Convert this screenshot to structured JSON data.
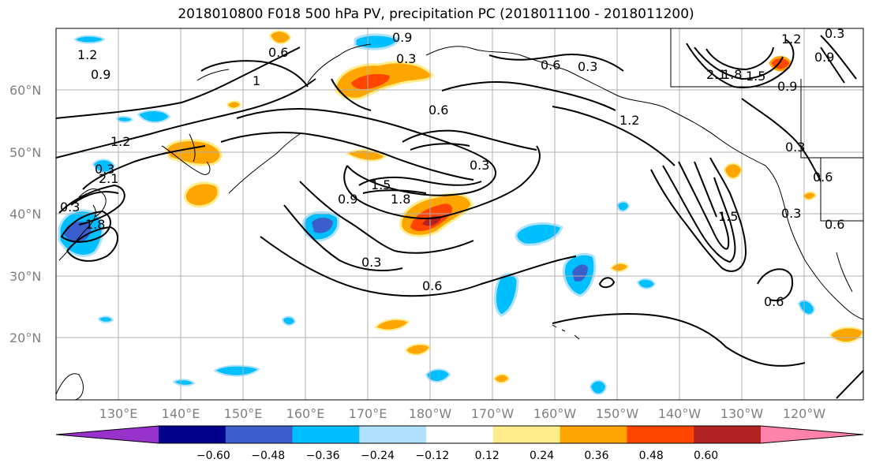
{
  "title": "2018010800 F018 500 hPa PV, precipitation PC (2018011100 - 2018011200)",
  "lat_labels": [
    "60°N",
    "50°N",
    "40°N",
    "30°N",
    "20°N"
  ],
  "lon_labels": [
    "130°E",
    "140°E",
    "150°E",
    "160°E",
    "170°E",
    "180°W",
    "170°W",
    "160°W",
    "150°W",
    "140°W",
    "130°W",
    "120°W"
  ],
  "colorbar": {
    "tick_labels": [
      "−0.60",
      "−0.48",
      "−0.36",
      "−0.24",
      "−0.12",
      "0.12",
      "0.24",
      "0.36",
      "0.48",
      "0.60"
    ],
    "colors": [
      "#9932cc",
      "#00008b",
      "#3a5fcd",
      "#00bfff",
      "#b0e2ff",
      "#ffffff",
      "#ffec8b",
      "#ffa500",
      "#ff4500",
      "#b22222",
      "#ff82ab"
    ]
  },
  "contour_labels": [
    "0.9",
    "0.6",
    "0.3",
    "1.2",
    "0.9",
    "0.3",
    "0.6",
    "0.3",
    "1.2",
    "2.1",
    "1.8",
    "1.5",
    "0.9",
    "0.9",
    "1",
    "1.2",
    "0.6",
    "1.2",
    "0.3",
    "1.5",
    "0.9",
    "1.8",
    "2.1",
    "0.3",
    "0.6",
    "1.5",
    "0.3",
    "0.3",
    "0.6",
    "0.6",
    "0.6",
    "0.3",
    "1.8",
    "0.3"
  ]
}
